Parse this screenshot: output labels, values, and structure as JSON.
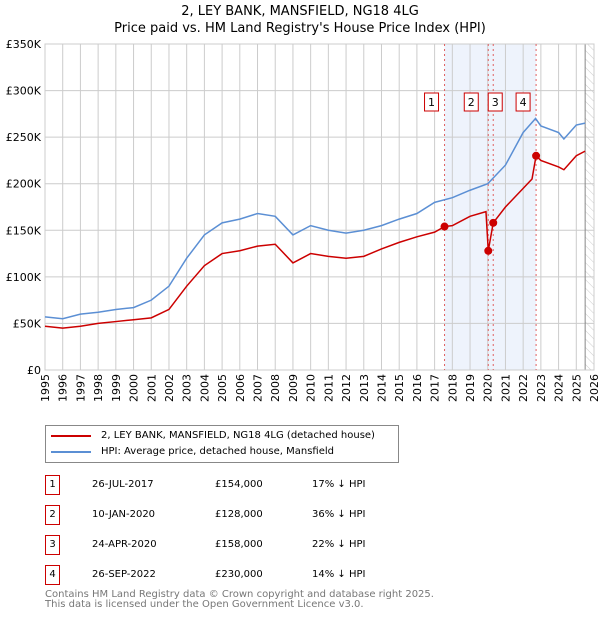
{
  "title": "2, LEY BANK, MANSFIELD, NG18 4LG",
  "subtitle": "Price paid vs. HM Land Registry's House Price Index (HPI)",
  "chart_data": {
    "type": "line",
    "xlim": [
      1995,
      2026
    ],
    "ylim": [
      0,
      350000
    ],
    "yticks": [
      0,
      50000,
      100000,
      150000,
      200000,
      250000,
      300000,
      350000
    ],
    "ytick_labels": [
      "£0",
      "£50K",
      "£100K",
      "£150K",
      "£200K",
      "£250K",
      "£300K",
      "£350K"
    ],
    "xticks": [
      1995,
      1996,
      1997,
      1998,
      1999,
      2000,
      2001,
      2002,
      2003,
      2004,
      2005,
      2006,
      2007,
      2008,
      2009,
      2010,
      2011,
      2012,
      2013,
      2014,
      2015,
      2016,
      2017,
      2018,
      2019,
      2020,
      2021,
      2022,
      2023,
      2024,
      2025,
      2026
    ],
    "grid": true,
    "shaded_range": [
      2017.56,
      2022.73
    ],
    "hatched_from": 2025.5,
    "series": [
      {
        "name": "2, LEY BANK, MANSFIELD, NG18 4LG (detached house)",
        "color": "#cc0000",
        "x": [
          1995,
          1996,
          1997,
          1998,
          1999,
          2000,
          2001,
          2002,
          2003,
          2004,
          2005,
          2006,
          2007,
          2008,
          2009,
          2010,
          2011,
          2012,
          2013,
          2014,
          2015,
          2016,
          2017,
          2017.56,
          2018,
          2019,
          2019.9,
          2020.03,
          2020.31,
          2021,
          2022,
          2022.5,
          2022.73,
          2023,
          2024,
          2024.3,
          2025,
          2025.5
        ],
        "y": [
          47000,
          45000,
          47000,
          50000,
          52000,
          54000,
          56000,
          65000,
          90000,
          112000,
          125000,
          128000,
          133000,
          135000,
          115000,
          125000,
          122000,
          120000,
          122000,
          130000,
          137000,
          143000,
          148000,
          154000,
          155000,
          165000,
          170000,
          128000,
          158000,
          175000,
          195000,
          205000,
          230000,
          225000,
          218000,
          215000,
          230000,
          235000
        ]
      },
      {
        "name": "HPI: Average price, detached house, Mansfield",
        "color": "#5b8fd4",
        "x": [
          1995,
          1996,
          1997,
          1998,
          1999,
          2000,
          2001,
          2002,
          2003,
          2004,
          2005,
          2006,
          2007,
          2008,
          2009,
          2010,
          2011,
          2012,
          2013,
          2014,
          2015,
          2016,
          2017,
          2018,
          2019,
          2020,
          2021,
          2022,
          2022.7,
          2023,
          2024,
          2024.3,
          2025,
          2025.5
        ],
        "y": [
          57000,
          55000,
          60000,
          62000,
          65000,
          67000,
          75000,
          90000,
          120000,
          145000,
          158000,
          162000,
          168000,
          165000,
          145000,
          155000,
          150000,
          147000,
          150000,
          155000,
          162000,
          168000,
          180000,
          185000,
          193000,
          200000,
          220000,
          255000,
          270000,
          262000,
          255000,
          248000,
          263000,
          265000
        ]
      }
    ],
    "sales": [
      {
        "label": "1",
        "x": 2017.56,
        "y": 154000
      },
      {
        "label": "2",
        "x": 2020.03,
        "y": 128000
      },
      {
        "label": "3",
        "x": 2020.31,
        "y": 158000
      },
      {
        "label": "4",
        "x": 2022.73,
        "y": 230000
      }
    ]
  },
  "table": [
    {
      "num": "1",
      "date": "26-JUL-2017",
      "price": "£154,000",
      "delta": "17% ↓ HPI"
    },
    {
      "num": "2",
      "date": "10-JAN-2020",
      "price": "£128,000",
      "delta": "36% ↓ HPI"
    },
    {
      "num": "3",
      "date": "24-APR-2020",
      "price": "£158,000",
      "delta": "22% ↓ HPI"
    },
    {
      "num": "4",
      "date": "26-SEP-2022",
      "price": "£230,000",
      "delta": "14% ↓ HPI"
    }
  ],
  "footer": {
    "line1": "Contains HM Land Registry data © Crown copyright and database right 2025.",
    "line2": "This data is licensed under the Open Government Licence v3.0."
  }
}
